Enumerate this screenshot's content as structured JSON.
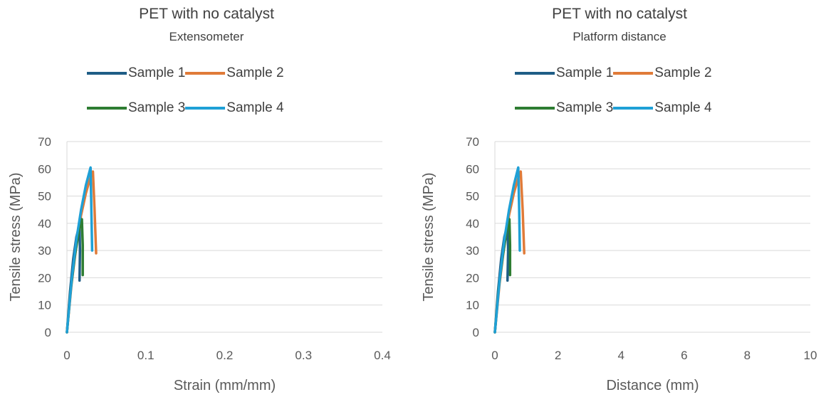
{
  "chart_data": [
    {
      "type": "line",
      "title": "PET with no catalyst",
      "subtitle": "Extensometer",
      "xlabel": "Strain (mm/mm)",
      "ylabel": "Tensile stress (MPa)",
      "xlim": [
        0,
        0.4
      ],
      "ylim": [
        0,
        70
      ],
      "xticks": [
        "0",
        "0.1",
        "0.2",
        "0.3",
        "0.4"
      ],
      "yticks": [
        "0",
        "10",
        "20",
        "30",
        "40",
        "50",
        "60",
        "70"
      ],
      "grid": "horizontal",
      "legend": "top",
      "series": [
        {
          "name": "Sample 1",
          "color": "#1f5d86",
          "x": [
            0,
            0.004,
            0.008,
            0.012,
            0.016,
            0.0165,
            0.016
          ],
          "y": [
            0,
            15,
            27,
            35,
            39.5,
            30,
            19
          ]
        },
        {
          "name": "Sample 2",
          "color": "#e07b39",
          "x": [
            0,
            0.006,
            0.012,
            0.018,
            0.024,
            0.03,
            0.033,
            0.035,
            0.037
          ],
          "y": [
            0,
            18,
            32,
            43,
            51,
            57,
            59,
            45,
            29
          ]
        },
        {
          "name": "Sample 3",
          "color": "#2e7d32",
          "x": [
            0,
            0.005,
            0.01,
            0.015,
            0.019,
            0.02,
            0.02
          ],
          "y": [
            0,
            16,
            28,
            37,
            41.5,
            32,
            21
          ]
        },
        {
          "name": "Sample 4",
          "color": "#1fa0d6",
          "x": [
            0,
            0.006,
            0.012,
            0.018,
            0.024,
            0.03,
            0.031,
            0.032
          ],
          "y": [
            0,
            19,
            34,
            45,
            54,
            60.5,
            45,
            30
          ]
        }
      ]
    },
    {
      "type": "line",
      "title": "PET with no catalyst",
      "subtitle": "Platform distance",
      "xlabel": "Distance (mm)",
      "ylabel": "Tensile stress (MPa)",
      "xlim": [
        0,
        10
      ],
      "ylim": [
        0,
        70
      ],
      "xticks": [
        "0",
        "2",
        "4",
        "6",
        "8",
        "10"
      ],
      "yticks": [
        "0",
        "10",
        "20",
        "30",
        "40",
        "50",
        "60",
        "70"
      ],
      "grid": "horizontal",
      "legend": "top",
      "series": [
        {
          "name": "Sample 1",
          "color": "#1f5d86",
          "x": [
            0,
            0.1,
            0.2,
            0.3,
            0.4,
            0.42,
            0.4
          ],
          "y": [
            0,
            15,
            27,
            35,
            39.5,
            30,
            19
          ]
        },
        {
          "name": "Sample 2",
          "color": "#e07b39",
          "x": [
            0,
            0.15,
            0.3,
            0.45,
            0.6,
            0.75,
            0.82,
            0.88,
            0.93
          ],
          "y": [
            0,
            18,
            32,
            43,
            51,
            57,
            59,
            45,
            29
          ]
        },
        {
          "name": "Sample 3",
          "color": "#2e7d32",
          "x": [
            0,
            0.12,
            0.25,
            0.37,
            0.46,
            0.48,
            0.48
          ],
          "y": [
            0,
            16,
            28,
            37,
            41.5,
            32,
            21
          ]
        },
        {
          "name": "Sample 4",
          "color": "#1fa0d6",
          "x": [
            0,
            0.15,
            0.3,
            0.45,
            0.6,
            0.74,
            0.77,
            0.79
          ],
          "y": [
            0,
            19,
            34,
            45,
            54,
            60.5,
            45,
            30
          ]
        }
      ]
    }
  ]
}
